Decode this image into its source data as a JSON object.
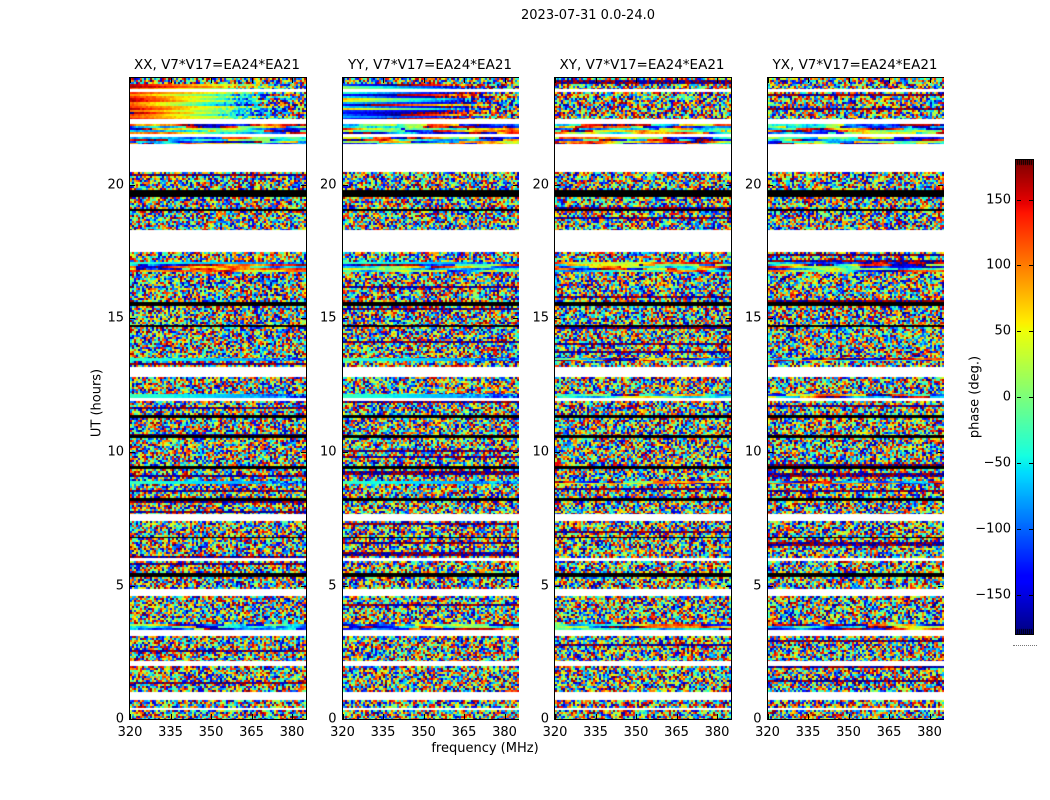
{
  "figure": {
    "title": "2023-07-31 0.0-24.0",
    "background": "#ffffff"
  },
  "chart_data": {
    "type": "heatmap",
    "title": "2023-07-31 0.0-24.0",
    "xlabel": "frequency (MHz)",
    "ylabel": "UT (hours)",
    "x_range": [
      320,
      385
    ],
    "y_range": [
      0,
      24
    ],
    "x_ticks": [
      320,
      335,
      350,
      365,
      380
    ],
    "y_ticks": [
      20,
      15,
      10,
      5,
      0
    ],
    "panels": [
      {
        "title": "XX, V7*V17=EA24*EA21",
        "pol": "XX",
        "coherent_cal": true
      },
      {
        "title": "YY, V7*V17=EA24*EA21",
        "pol": "YY",
        "coherent_cal": true
      },
      {
        "title": "XY, V7*V17=EA24*EA21",
        "pol": "XY",
        "coherent_cal": false
      },
      {
        "title": "YX, V7*V17=EA24*EA21",
        "pol": "YX",
        "coherent_cal": false
      }
    ],
    "colorbar": {
      "label": "phase (deg.)",
      "ticks": [
        150,
        100,
        50,
        0,
        -50,
        -100,
        -150
      ],
      "range": [
        -180,
        180
      ],
      "colormap": "jet",
      "colormap_stops": [
        "#000080",
        "#0000ff",
        "#00ffff",
        "#80ff80",
        "#ffff00",
        "#ff0000",
        "#800000"
      ]
    },
    "row_pattern": [
      {
        "top": 24.0,
        "bottom": 23.78,
        "kind": "noise"
      },
      {
        "top": 23.78,
        "bottom": 23.57,
        "kind": "cal"
      },
      {
        "top": 23.57,
        "bottom": 23.47,
        "kind": "white"
      },
      {
        "top": 23.47,
        "bottom": 22.45,
        "kind": "cal"
      },
      {
        "top": 22.45,
        "bottom": 22.27,
        "kind": "white"
      },
      {
        "top": 22.27,
        "bottom": 21.92,
        "kind": "streak"
      },
      {
        "top": 21.92,
        "bottom": 21.78,
        "kind": "white"
      },
      {
        "top": 21.78,
        "bottom": 21.52,
        "kind": "streak"
      },
      {
        "top": 21.52,
        "bottom": 20.47,
        "kind": "white"
      },
      {
        "top": 20.47,
        "bottom": 19.82,
        "kind": "noise"
      },
      {
        "top": 19.82,
        "bottom": 19.56,
        "kind": "black"
      },
      {
        "top": 19.56,
        "bottom": 19.08,
        "kind": "noise"
      },
      {
        "top": 19.08,
        "bottom": 19.02,
        "kind": "black"
      },
      {
        "top": 19.02,
        "bottom": 18.32,
        "kind": "noise"
      },
      {
        "top": 18.32,
        "bottom": 17.47,
        "kind": "white"
      },
      {
        "top": 17.47,
        "bottom": 17.12,
        "kind": "noise"
      },
      {
        "top": 17.12,
        "bottom": 17.04,
        "kind": "cyan"
      },
      {
        "top": 17.04,
        "bottom": 16.72,
        "kind": "streak"
      },
      {
        "top": 16.72,
        "bottom": 15.62,
        "kind": "noise"
      },
      {
        "top": 15.62,
        "bottom": 15.45,
        "kind": "black"
      },
      {
        "top": 15.45,
        "bottom": 14.74,
        "kind": "noise"
      },
      {
        "top": 14.74,
        "bottom": 14.67,
        "kind": "black"
      },
      {
        "top": 14.67,
        "bottom": 13.52,
        "kind": "noise"
      },
      {
        "top": 13.52,
        "bottom": 13.42,
        "kind": "cyan"
      },
      {
        "top": 13.42,
        "bottom": 13.17,
        "kind": "noise"
      },
      {
        "top": 13.17,
        "bottom": 12.82,
        "kind": "white"
      },
      {
        "top": 12.82,
        "bottom": 12.17,
        "kind": "noise"
      },
      {
        "top": 12.17,
        "bottom": 12.02,
        "kind": "cyan"
      },
      {
        "top": 12.02,
        "bottom": 11.92,
        "kind": "white"
      },
      {
        "top": 11.92,
        "bottom": 11.37,
        "kind": "noise"
      },
      {
        "top": 11.37,
        "bottom": 11.28,
        "kind": "black"
      },
      {
        "top": 11.28,
        "bottom": 10.62,
        "kind": "noise"
      },
      {
        "top": 10.62,
        "bottom": 10.52,
        "kind": "black"
      },
      {
        "top": 10.52,
        "bottom": 9.47,
        "kind": "noise"
      },
      {
        "top": 9.47,
        "bottom": 9.37,
        "kind": "black"
      },
      {
        "top": 9.37,
        "bottom": 8.92,
        "kind": "noise"
      },
      {
        "top": 8.92,
        "bottom": 8.8,
        "kind": "cyan"
      },
      {
        "top": 8.8,
        "bottom": 8.27,
        "kind": "noise"
      },
      {
        "top": 8.27,
        "bottom": 8.17,
        "kind": "black"
      },
      {
        "top": 8.17,
        "bottom": 7.67,
        "kind": "noise"
      },
      {
        "top": 7.67,
        "bottom": 7.42,
        "kind": "white"
      },
      {
        "top": 7.42,
        "bottom": 6.82,
        "kind": "noise"
      },
      {
        "top": 6.82,
        "bottom": 6.76,
        "kind": "black"
      },
      {
        "top": 6.76,
        "bottom": 6.02,
        "kind": "noise"
      },
      {
        "top": 6.02,
        "bottom": 5.92,
        "kind": "white"
      },
      {
        "top": 5.92,
        "bottom": 5.47,
        "kind": "noise"
      },
      {
        "top": 5.47,
        "bottom": 5.32,
        "kind": "black"
      },
      {
        "top": 5.32,
        "bottom": 4.87,
        "kind": "noise"
      },
      {
        "top": 4.87,
        "bottom": 4.62,
        "kind": "white"
      },
      {
        "top": 4.62,
        "bottom": 3.57,
        "kind": "noise"
      },
      {
        "top": 3.57,
        "bottom": 3.32,
        "kind": "streak"
      },
      {
        "top": 3.32,
        "bottom": 3.12,
        "kind": "white"
      },
      {
        "top": 3.12,
        "bottom": 2.17,
        "kind": "noise"
      },
      {
        "top": 2.17,
        "bottom": 1.97,
        "kind": "white"
      },
      {
        "top": 1.97,
        "bottom": 1.02,
        "kind": "noise"
      },
      {
        "top": 1.02,
        "bottom": 0.72,
        "kind": "white"
      },
      {
        "top": 0.72,
        "bottom": 0.42,
        "kind": "noise"
      },
      {
        "top": 0.42,
        "bottom": 0.32,
        "kind": "white"
      },
      {
        "top": 0.32,
        "bottom": 0.0,
        "kind": "noise"
      }
    ]
  }
}
